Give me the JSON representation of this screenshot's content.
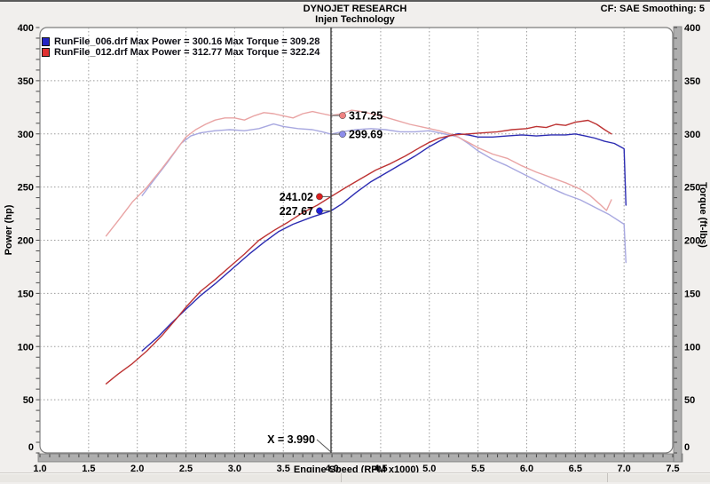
{
  "header": {
    "title": "DYNOJET RESEARCH",
    "subtitle": "Injen Technology",
    "settings": "CF: SAE  Smoothing: 5"
  },
  "legend": {
    "items": [
      {
        "label": "RunFile_006.drf Max Power = 300.16 Max Torque = 309.28",
        "color": "#2424c4"
      },
      {
        "label": "RunFile_012.drf Max Power = 312.77 Max Torque = 322.24",
        "color": "#df3030"
      }
    ]
  },
  "chart_data": {
    "type": "line",
    "title": "DYNOJET RESEARCH",
    "subtitle": "Injen Technology",
    "xlabel": "Engine Speed (RPM x1000)",
    "ylabel_left": "Power (hp)",
    "ylabel_right": "Torque (ft-lbs)",
    "xlim": [
      1.0,
      7.5
    ],
    "ylim_left": [
      0,
      400
    ],
    "ylim_right": [
      0,
      400
    ],
    "x_ticks": [
      "1.0",
      "1.5",
      "2.0",
      "2.5",
      "3.0",
      "3.5",
      "4.0",
      "4.5",
      "5.0",
      "5.5",
      "6.0",
      "6.5",
      "7.0",
      "7.5"
    ],
    "y_ticks": [
      400,
      350,
      300,
      250,
      200,
      150,
      100,
      50,
      0
    ],
    "grid": {
      "x_step": 0.5,
      "y_step": 50,
      "style": "dotted",
      "color": "#9b9b9b"
    },
    "series": [
      {
        "name": "RunFile_006.drf Torque",
        "role": "torque-006",
        "axis": "right",
        "color": "#a8a8e0",
        "points": [
          [
            2.05,
            242
          ],
          [
            2.15,
            254
          ],
          [
            2.3,
            272
          ],
          [
            2.45,
            291
          ],
          [
            2.55,
            298
          ],
          [
            2.65,
            301
          ],
          [
            2.8,
            303
          ],
          [
            2.95,
            304
          ],
          [
            3.1,
            303
          ],
          [
            3.25,
            305
          ],
          [
            3.4,
            309.28
          ],
          [
            3.5,
            307
          ],
          [
            3.65,
            305
          ],
          [
            3.8,
            304
          ],
          [
            3.9,
            302
          ],
          [
            3.99,
            299.69
          ],
          [
            4.1,
            302
          ],
          [
            4.25,
            304
          ],
          [
            4.4,
            305
          ],
          [
            4.55,
            304
          ],
          [
            4.7,
            302
          ],
          [
            4.85,
            302
          ],
          [
            5.0,
            303
          ],
          [
            5.1,
            301
          ],
          [
            5.2,
            299
          ],
          [
            5.3,
            297
          ],
          [
            5.4,
            291
          ],
          [
            5.5,
            284
          ],
          [
            5.65,
            276
          ],
          [
            5.8,
            270
          ],
          [
            5.95,
            263
          ],
          [
            6.1,
            256
          ],
          [
            6.25,
            249
          ],
          [
            6.4,
            243
          ],
          [
            6.55,
            238
          ],
          [
            6.7,
            231
          ],
          [
            6.85,
            224
          ],
          [
            7.0,
            215
          ],
          [
            7.02,
            179
          ]
        ]
      },
      {
        "name": "RunFile_012.drf Torque",
        "role": "torque-012",
        "axis": "right",
        "color": "#e9a4a4",
        "points": [
          [
            1.68,
            204
          ],
          [
            1.8,
            218
          ],
          [
            1.95,
            236
          ],
          [
            2.1,
            250
          ],
          [
            2.25,
            267
          ],
          [
            2.4,
            285
          ],
          [
            2.5,
            297
          ],
          [
            2.6,
            304
          ],
          [
            2.7,
            309
          ],
          [
            2.8,
            313
          ],
          [
            2.9,
            315
          ],
          [
            3.0,
            315
          ],
          [
            3.1,
            313
          ],
          [
            3.2,
            317
          ],
          [
            3.3,
            320
          ],
          [
            3.4,
            319
          ],
          [
            3.5,
            317
          ],
          [
            3.6,
            315
          ],
          [
            3.7,
            319
          ],
          [
            3.8,
            321
          ],
          [
            3.9,
            319
          ],
          [
            3.99,
            317.25
          ],
          [
            4.1,
            319
          ],
          [
            4.2,
            322.24
          ],
          [
            4.3,
            321
          ],
          [
            4.4,
            319
          ],
          [
            4.5,
            317
          ],
          [
            4.65,
            313
          ],
          [
            4.8,
            309
          ],
          [
            4.95,
            306
          ],
          [
            5.1,
            303
          ],
          [
            5.25,
            299
          ],
          [
            5.4,
            292
          ],
          [
            5.5,
            287
          ],
          [
            5.65,
            281
          ],
          [
            5.8,
            277
          ],
          [
            5.95,
            270
          ],
          [
            6.1,
            264
          ],
          [
            6.25,
            259
          ],
          [
            6.4,
            254
          ],
          [
            6.55,
            248
          ],
          [
            6.65,
            242
          ],
          [
            6.75,
            234
          ],
          [
            6.82,
            228
          ],
          [
            6.87,
            238
          ]
        ]
      },
      {
        "name": "RunFile_006.drf Power",
        "role": "power-006",
        "axis": "left",
        "color": "#2c2cb2",
        "points": [
          [
            2.05,
            96
          ],
          [
            2.2,
            108
          ],
          [
            2.35,
            122
          ],
          [
            2.5,
            135
          ],
          [
            2.65,
            148
          ],
          [
            2.8,
            159
          ],
          [
            3.0,
            175
          ],
          [
            3.15,
            187
          ],
          [
            3.3,
            198
          ],
          [
            3.45,
            208
          ],
          [
            3.6,
            215
          ],
          [
            3.8,
            222
          ],
          [
            3.99,
            227.67
          ],
          [
            4.1,
            234
          ],
          [
            4.25,
            245
          ],
          [
            4.4,
            255
          ],
          [
            4.55,
            263
          ],
          [
            4.7,
            271
          ],
          [
            4.85,
            279
          ],
          [
            5.0,
            288
          ],
          [
            5.1,
            293
          ],
          [
            5.2,
            298
          ],
          [
            5.3,
            300.16
          ],
          [
            5.4,
            299
          ],
          [
            5.5,
            297
          ],
          [
            5.65,
            297
          ],
          [
            5.8,
            298
          ],
          [
            5.95,
            299
          ],
          [
            6.1,
            298
          ],
          [
            6.25,
            299
          ],
          [
            6.4,
            299
          ],
          [
            6.5,
            300
          ],
          [
            6.6,
            298
          ],
          [
            6.7,
            296
          ],
          [
            6.8,
            293
          ],
          [
            6.9,
            291
          ],
          [
            7.0,
            286
          ],
          [
            7.02,
            233
          ]
        ]
      },
      {
        "name": "RunFile_012.drf Power",
        "role": "power-012",
        "axis": "left",
        "color": "#bd3333",
        "points": [
          [
            1.68,
            65
          ],
          [
            1.8,
            74
          ],
          [
            1.95,
            84
          ],
          [
            2.1,
            96
          ],
          [
            2.25,
            110
          ],
          [
            2.4,
            126
          ],
          [
            2.5,
            137
          ],
          [
            2.65,
            152
          ],
          [
            2.8,
            163
          ],
          [
            2.95,
            175
          ],
          [
            3.1,
            187
          ],
          [
            3.25,
            200
          ],
          [
            3.4,
            209
          ],
          [
            3.55,
            217
          ],
          [
            3.7,
            226
          ],
          [
            3.85,
            233
          ],
          [
            3.99,
            241.02
          ],
          [
            4.15,
            250
          ],
          [
            4.3,
            258
          ],
          [
            4.45,
            266
          ],
          [
            4.6,
            272
          ],
          [
            4.75,
            279
          ],
          [
            4.9,
            287
          ],
          [
            5.0,
            292
          ],
          [
            5.1,
            296
          ],
          [
            5.25,
            299
          ],
          [
            5.4,
            300
          ],
          [
            5.55,
            301
          ],
          [
            5.7,
            302
          ],
          [
            5.85,
            304
          ],
          [
            6.0,
            305
          ],
          [
            6.1,
            307
          ],
          [
            6.2,
            306
          ],
          [
            6.3,
            309
          ],
          [
            6.4,
            308
          ],
          [
            6.5,
            311
          ],
          [
            6.63,
            312.77
          ],
          [
            6.72,
            309
          ],
          [
            6.8,
            304
          ],
          [
            6.87,
            300
          ]
        ]
      }
    ],
    "cursor": {
      "x": 3.99,
      "label": "X = 3.990",
      "line_color": "#3c3c3c",
      "readouts": [
        {
          "label": "317.25",
          "value": 317.25,
          "side": "right",
          "color": "#ef8282"
        },
        {
          "label": "299.69",
          "value": 299.69,
          "side": "right",
          "color": "#8d8dea"
        },
        {
          "label": "241.02",
          "value": 241.02,
          "side": "left",
          "color": "#dc2020"
        },
        {
          "label": "227.67",
          "value": 227.67,
          "side": "left",
          "color": "#2020dc"
        }
      ]
    },
    "axis_zero_labels": [
      "0",
      "0"
    ]
  },
  "statusbar": {
    "segments": [
      "",
      "",
      ""
    ]
  }
}
